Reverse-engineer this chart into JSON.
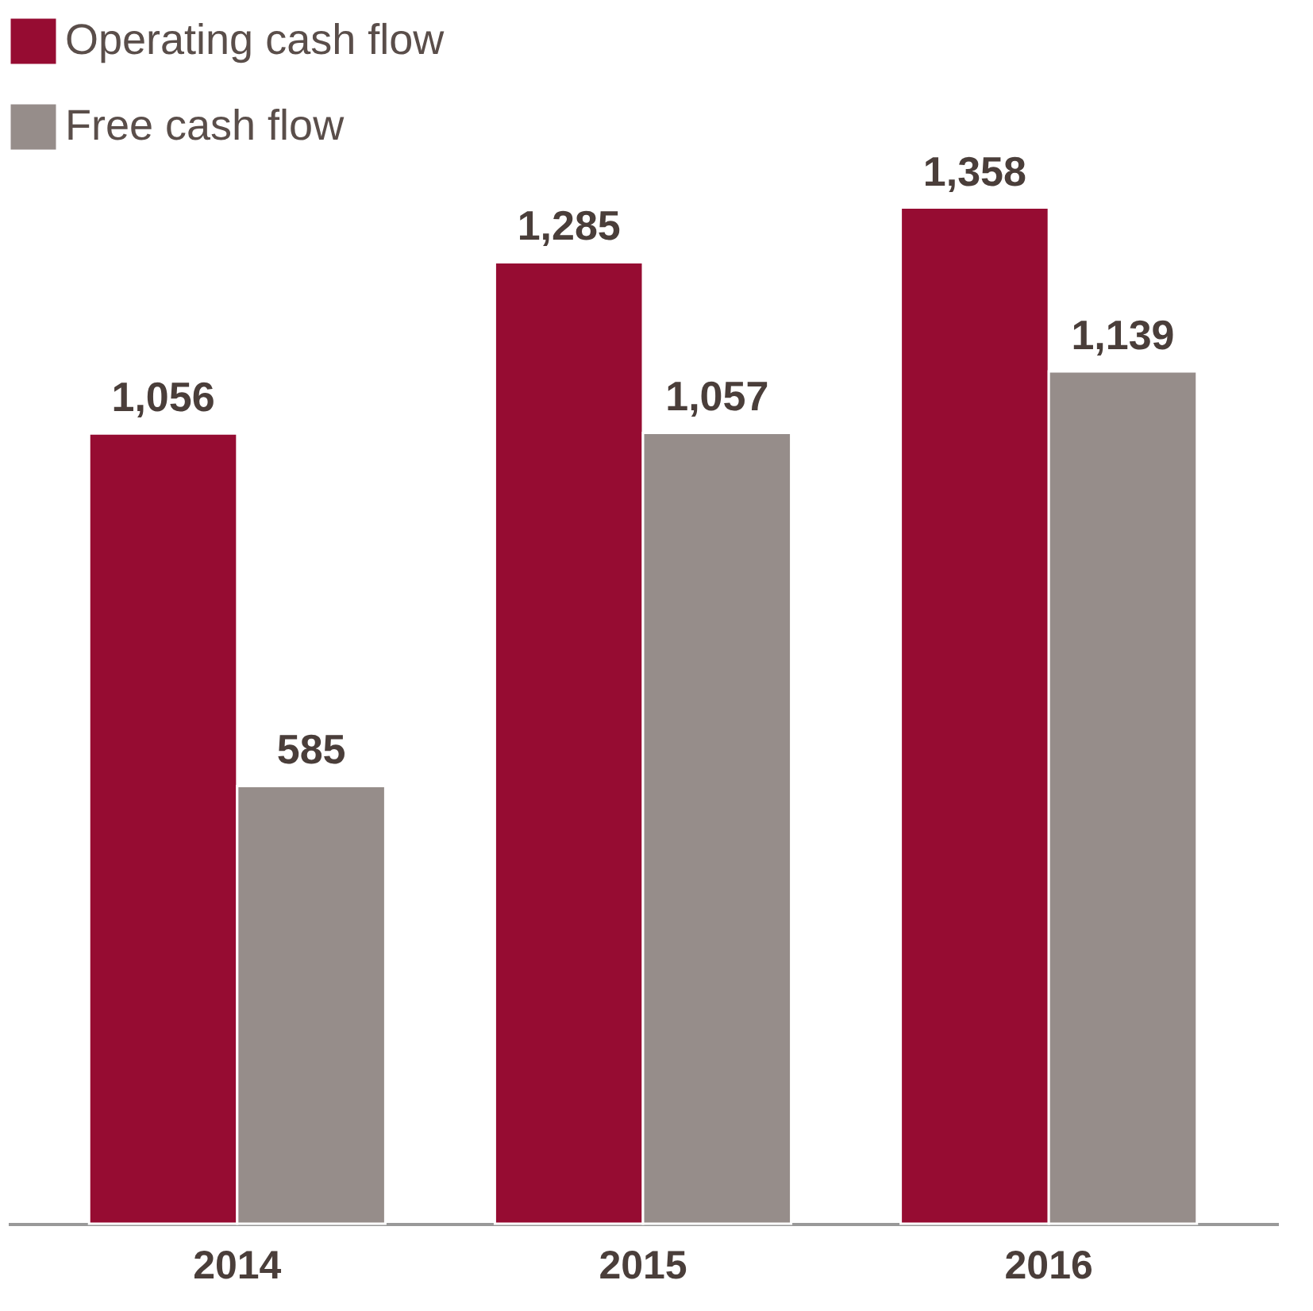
{
  "chart_data": {
    "type": "bar",
    "categories": [
      "2014",
      "2015",
      "2016"
    ],
    "series": [
      {
        "name": "Operating cash flow",
        "color": "#960c32",
        "values": [
          1056,
          1285,
          1358
        ],
        "value_labels": [
          "1,056",
          "1,285",
          "1,358"
        ]
      },
      {
        "name": "Free cash flow",
        "color": "#968d8a",
        "values": [
          585,
          1057,
          1139
        ],
        "value_labels": [
          "585",
          "1,057",
          "1,139"
        ]
      }
    ],
    "legend": "top left",
    "grid": false,
    "relative": false
  }
}
